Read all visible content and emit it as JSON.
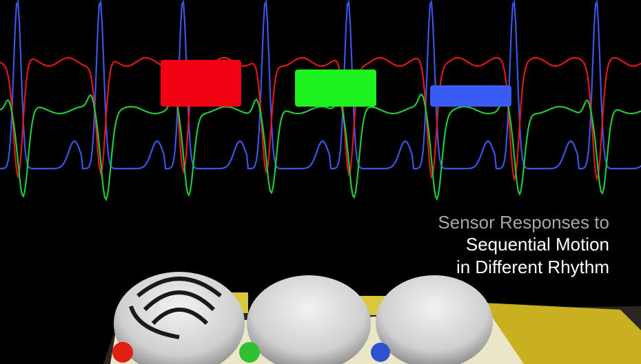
{
  "caption": {
    "lines": [
      "Sensor Responses to",
      "Sequential Motion",
      "in Different Rhythm"
    ]
  }
}
